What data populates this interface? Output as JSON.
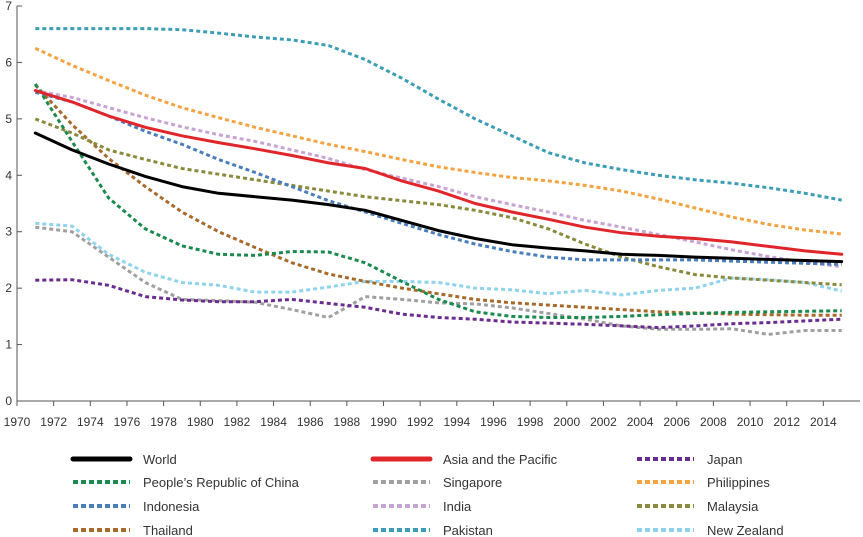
{
  "chart_data": {
    "type": "line",
    "title": "",
    "xlabel": "",
    "ylabel": "",
    "xlim": [
      1970,
      2016
    ],
    "ylim": [
      0,
      7
    ],
    "grid": false,
    "x_ticks": [
      1970,
      1972,
      1974,
      1976,
      1978,
      1980,
      1982,
      1984,
      1986,
      1988,
      1990,
      1992,
      1994,
      1996,
      1998,
      2000,
      2002,
      2004,
      2006,
      2008,
      2010,
      2012,
      2014
    ],
    "y_ticks": [
      0,
      1,
      2,
      3,
      4,
      5,
      6,
      7
    ],
    "years": [
      1971,
      1973,
      1975,
      1977,
      1979,
      1981,
      1983,
      1985,
      1987,
      1989,
      1991,
      1993,
      1995,
      1997,
      1999,
      2001,
      2003,
      2005,
      2007,
      2009,
      2011,
      2013,
      2015
    ],
    "legend_position": "bottom",
    "series": [
      {
        "name": "World",
        "color": "#000000",
        "dash": "solid",
        "values": [
          4.75,
          4.45,
          4.2,
          3.98,
          3.8,
          3.68,
          3.62,
          3.56,
          3.48,
          3.38,
          3.2,
          3.02,
          2.88,
          2.77,
          2.71,
          2.66,
          2.6,
          2.58,
          2.55,
          2.53,
          2.51,
          2.49,
          2.47
        ]
      },
      {
        "name": "Asia and the Pacific",
        "color": "#e0262b",
        "dash": "solid",
        "values": [
          5.5,
          5.3,
          5.05,
          4.85,
          4.7,
          4.58,
          4.47,
          4.35,
          4.22,
          4.12,
          3.9,
          3.72,
          3.5,
          3.35,
          3.22,
          3.08,
          2.98,
          2.92,
          2.88,
          2.82,
          2.74,
          2.66,
          2.6
        ]
      },
      {
        "name": "Japan",
        "color": "#6b2c8f",
        "dash": "dash",
        "values": [
          2.14,
          2.15,
          2.05,
          1.85,
          1.79,
          1.76,
          1.76,
          1.8,
          1.73,
          1.66,
          1.54,
          1.48,
          1.45,
          1.4,
          1.38,
          1.36,
          1.33,
          1.3,
          1.33,
          1.37,
          1.39,
          1.42,
          1.45
        ]
      },
      {
        "name": "People’s Republic of China",
        "color": "#1a8a4e",
        "dash": "dash",
        "values": [
          5.62,
          4.6,
          3.6,
          3.05,
          2.75,
          2.6,
          2.58,
          2.65,
          2.64,
          2.45,
          2.12,
          1.8,
          1.58,
          1.5,
          1.48,
          1.48,
          1.5,
          1.53,
          1.55,
          1.57,
          1.58,
          1.59,
          1.6
        ]
      },
      {
        "name": "Singapore",
        "color": "#a0a0a0",
        "dash": "dash",
        "values": [
          3.08,
          3.0,
          2.55,
          2.1,
          1.8,
          1.78,
          1.75,
          1.62,
          1.48,
          1.85,
          1.8,
          1.74,
          1.72,
          1.65,
          1.55,
          1.45,
          1.33,
          1.27,
          1.27,
          1.28,
          1.18,
          1.25,
          1.25
        ]
      },
      {
        "name": "Philippines",
        "color": "#f4a340",
        "dash": "dash",
        "values": [
          6.25,
          5.95,
          5.68,
          5.42,
          5.2,
          5.02,
          4.85,
          4.7,
          4.55,
          4.42,
          4.28,
          4.15,
          4.05,
          3.96,
          3.9,
          3.82,
          3.72,
          3.58,
          3.42,
          3.26,
          3.13,
          3.03,
          2.96
        ]
      },
      {
        "name": "Indonesia",
        "color": "#4a7ebb",
        "dash": "dash",
        "values": [
          5.47,
          5.3,
          5.05,
          4.78,
          4.55,
          4.28,
          4.05,
          3.8,
          3.55,
          3.35,
          3.15,
          2.95,
          2.78,
          2.65,
          2.55,
          2.5,
          2.5,
          2.5,
          2.5,
          2.48,
          2.46,
          2.44,
          2.42
        ]
      },
      {
        "name": "India",
        "color": "#c9a3d4",
        "dash": "dash",
        "values": [
          5.5,
          5.38,
          5.2,
          5.02,
          4.86,
          4.72,
          4.6,
          4.45,
          4.3,
          4.1,
          3.95,
          3.8,
          3.62,
          3.48,
          3.35,
          3.2,
          3.08,
          2.95,
          2.82,
          2.68,
          2.56,
          2.46,
          2.38
        ]
      },
      {
        "name": "Malaysia",
        "color": "#8a8a3c",
        "dash": "dash",
        "values": [
          5.0,
          4.75,
          4.45,
          4.28,
          4.12,
          4.02,
          3.92,
          3.82,
          3.72,
          3.62,
          3.55,
          3.48,
          3.38,
          3.25,
          3.05,
          2.78,
          2.55,
          2.38,
          2.24,
          2.18,
          2.14,
          2.1,
          2.06
        ]
      },
      {
        "name": "Thailand",
        "color": "#a86a2a",
        "dash": "dash",
        "values": [
          5.6,
          4.9,
          4.3,
          3.8,
          3.35,
          3.0,
          2.72,
          2.45,
          2.25,
          2.12,
          2.0,
          1.9,
          1.8,
          1.74,
          1.7,
          1.66,
          1.62,
          1.58,
          1.56,
          1.54,
          1.53,
          1.52,
          1.52
        ]
      },
      {
        "name": "Pakistan",
        "color": "#3b9eb5",
        "dash": "dash",
        "values": [
          6.6,
          6.6,
          6.6,
          6.6,
          6.58,
          6.52,
          6.45,
          6.4,
          6.3,
          6.05,
          5.72,
          5.35,
          5.0,
          4.7,
          4.4,
          4.22,
          4.1,
          4.0,
          3.92,
          3.86,
          3.78,
          3.68,
          3.56
        ]
      },
      {
        "name": "New Zealand",
        "color": "#8fd3ee",
        "dash": "dash",
        "values": [
          3.15,
          3.1,
          2.6,
          2.28,
          2.1,
          2.05,
          1.93,
          1.93,
          2.02,
          2.12,
          2.12,
          2.1,
          2.0,
          1.97,
          1.9,
          1.96,
          1.88,
          1.96,
          2.0,
          2.18,
          2.15,
          2.1,
          1.95
        ]
      }
    ]
  }
}
